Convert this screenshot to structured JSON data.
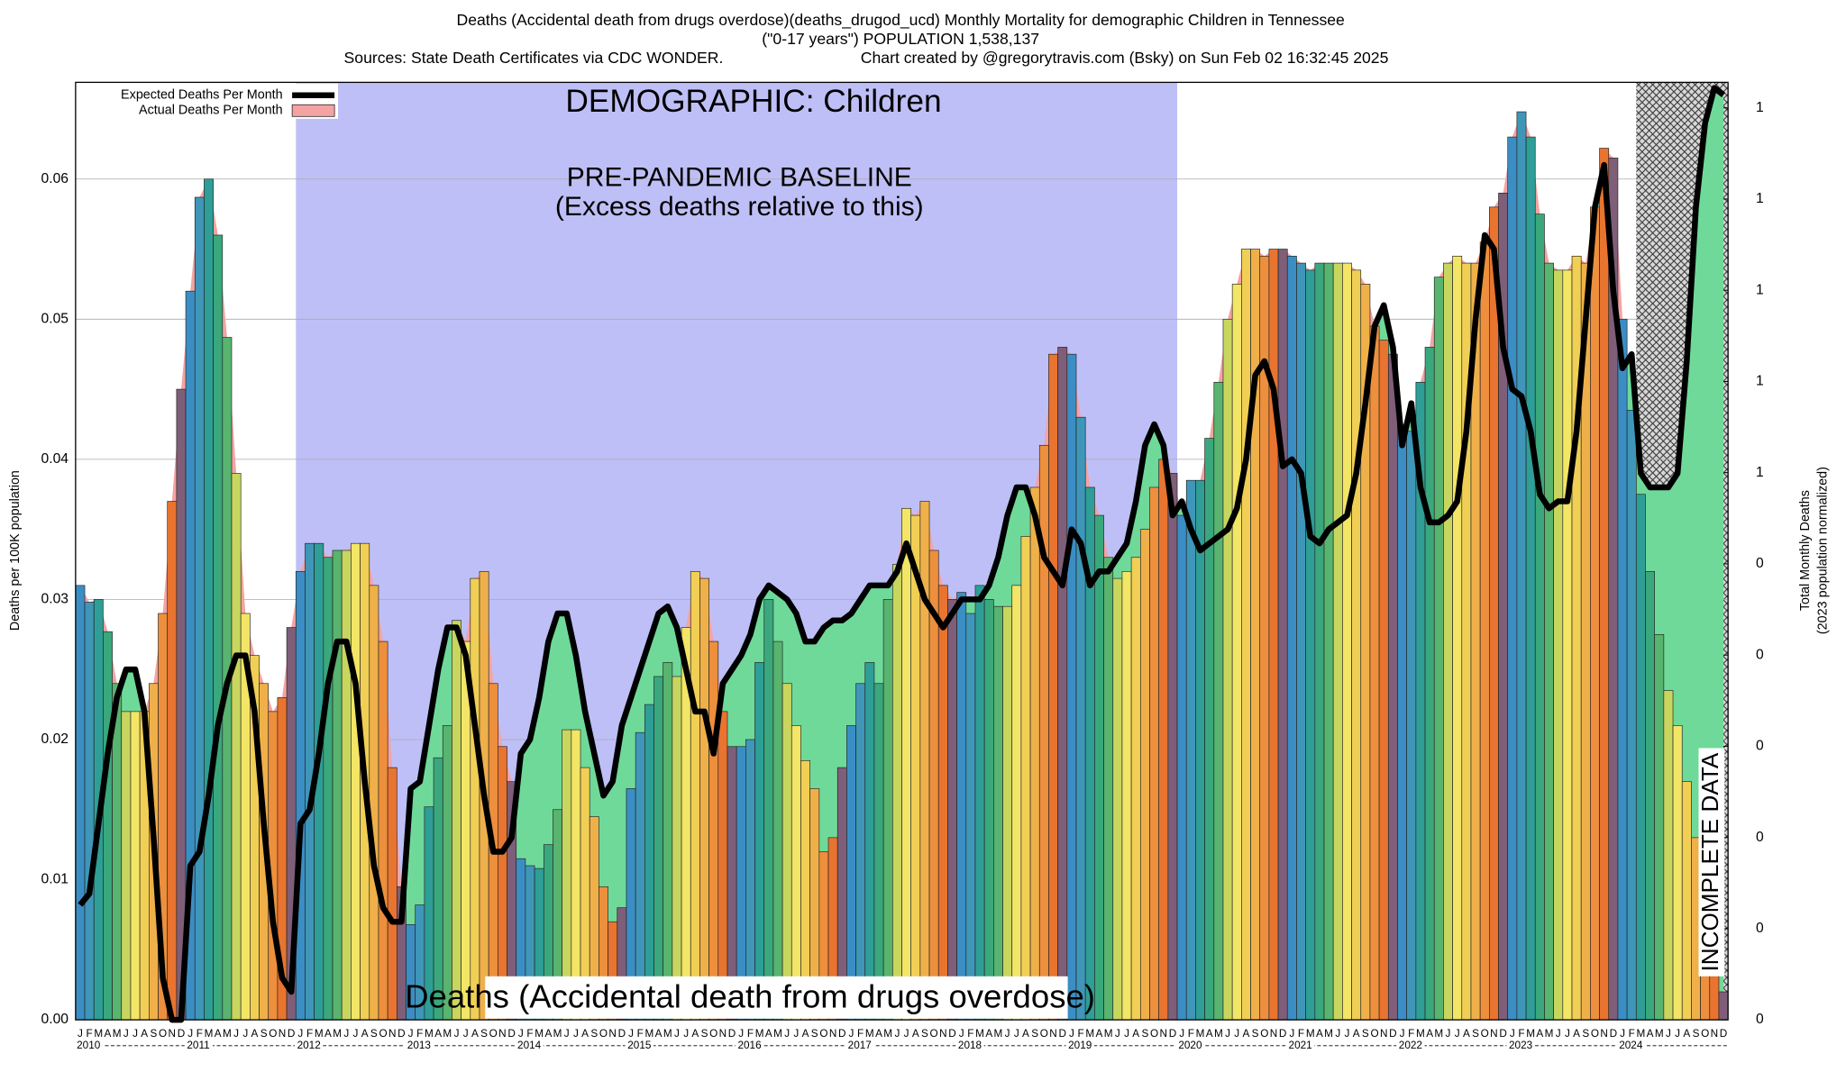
{
  "chart_data": {
    "type": "bar",
    "title": "Deaths (Accidental death from drugs overdose)(deaths_drugod_ucd) Monthly Mortality for demographic Children in Tennessee",
    "subtitle": "(\"0-17 years\") POPULATION 1,538,137",
    "sources": "Sources: State Death Certificates via CDC WONDER.",
    "credit": "Chart created by @gregorytravis.com (Bsky) on Sun Feb 02 16:32:45 2025",
    "ylabel": "Deaths per 100K population",
    "y2label": [
      "Total Monthly Deaths",
      "(2023 population normalized)"
    ],
    "annotations": {
      "demographic": "DEMOGRAPHIC: Children",
      "baseline": "PRE-PANDEMIC BASELINE",
      "baseline_note": "(Excess deaths relative to this)",
      "cause": "Deaths (Accidental death from drugs overdose)",
      "incomplete": "INCOMPLETE DATA"
    },
    "categories": [
      "J",
      "F",
      "M",
      "A",
      "M",
      "J",
      "J",
      "A",
      "S",
      "O",
      "N",
      "D",
      "J",
      "F",
      "M",
      "A",
      "M",
      "J",
      "J",
      "A",
      "S",
      "O",
      "N",
      "D",
      "J",
      "F",
      "M",
      "A",
      "M",
      "J",
      "J",
      "A",
      "S",
      "O",
      "N",
      "D",
      "J",
      "F",
      "M",
      "A",
      "M",
      "J",
      "J",
      "A",
      "S",
      "O",
      "N",
      "D",
      "J",
      "F",
      "M",
      "A",
      "M",
      "J",
      "J",
      "A",
      "S",
      "O",
      "N",
      "D",
      "J",
      "F",
      "M",
      "A",
      "M",
      "J",
      "J",
      "A",
      "S",
      "O",
      "N",
      "D",
      "J",
      "F",
      "M",
      "A",
      "M",
      "J",
      "J",
      "A",
      "S",
      "O",
      "N",
      "D",
      "J",
      "F",
      "M",
      "A",
      "M",
      "J",
      "J",
      "A",
      "S",
      "O",
      "N",
      "D",
      "J",
      "F",
      "M",
      "A",
      "M",
      "J",
      "J",
      "A",
      "S",
      "O",
      "N",
      "D",
      "J",
      "F",
      "M",
      "A",
      "M",
      "J",
      "J",
      "A",
      "S",
      "O",
      "N",
      "D",
      "J",
      "F",
      "M",
      "A",
      "M",
      "J",
      "J",
      "A",
      "S",
      "O",
      "N",
      "D",
      "J",
      "F",
      "M",
      "A",
      "M",
      "J",
      "J",
      "A",
      "S",
      "O",
      "N",
      "D",
      "J",
      "F",
      "M",
      "A",
      "M",
      "J",
      "J",
      "A",
      "S",
      "O",
      "N",
      "D",
      "J",
      "F",
      "M",
      "A",
      "M",
      "J",
      "J",
      "A",
      "S",
      "O",
      "N",
      "D",
      "J",
      "F",
      "M",
      "A",
      "M",
      "J",
      "J",
      "A",
      "S",
      "O",
      "N",
      "D"
    ],
    "years": [
      "2010",
      "2011",
      "2012",
      "2013",
      "2014",
      "2015",
      "2016",
      "2017",
      "2018",
      "2019",
      "2020",
      "2021",
      "2022",
      "2023",
      "2024"
    ],
    "month_colors": [
      "#3b8ec4",
      "#3f96b8",
      "#2e9e96",
      "#3aa87c",
      "#58b46e",
      "#c9d65e",
      "#f3e566",
      "#f1cf55",
      "#efb04a",
      "#ed8f3c",
      "#e8742f",
      "#7e5e78"
    ],
    "series": [
      {
        "name": "Expected Deaths Per Month",
        "color": "#000000",
        "fill": "#6fd99a",
        "values": [
          0.0082,
          0.009,
          0.014,
          0.019,
          0.023,
          0.025,
          0.025,
          0.022,
          0.013,
          0.003,
          0,
          0,
          0.011,
          0.012,
          0.016,
          0.021,
          0.024,
          0.026,
          0.026,
          0.022,
          0.014,
          0.007,
          0.003,
          0.002,
          0.014,
          0.015,
          0.019,
          0.024,
          0.027,
          0.027,
          0.024,
          0.017,
          0.011,
          0.008,
          0.007,
          0.007,
          0.0165,
          0.017,
          0.021,
          0.025,
          0.028,
          0.028,
          0.026,
          0.021,
          0.016,
          0.012,
          0.012,
          0.013,
          0.019,
          0.02,
          0.023,
          0.027,
          0.029,
          0.029,
          0.026,
          0.022,
          0.019,
          0.016,
          0.017,
          0.021,
          0.023,
          0.025,
          0.027,
          0.029,
          0.0295,
          0.028,
          0.025,
          0.022,
          0.022,
          0.019,
          0.024,
          0.025,
          0.026,
          0.0275,
          0.03,
          0.031,
          0.0305,
          0.03,
          0.029,
          0.027,
          0.027,
          0.028,
          0.0285,
          0.0285,
          0.029,
          0.03,
          0.031,
          0.031,
          0.031,
          0.032,
          0.034,
          0.032,
          0.03,
          0.029,
          0.028,
          0.029,
          0.03,
          0.03,
          0.03,
          0.031,
          0.033,
          0.036,
          0.038,
          0.038,
          0.036,
          0.033,
          0.032,
          0.031,
          0.035,
          0.034,
          0.031,
          0.032,
          0.032,
          0.033,
          0.034,
          0.037,
          0.041,
          0.0425,
          0.041,
          0.036,
          0.037,
          0.035,
          0.0335,
          0.034,
          0.0345,
          0.035,
          0.0365,
          0.04,
          0.046,
          0.047,
          0.045,
          0.0395,
          0.04,
          0.039,
          0.0345,
          0.034,
          0.035,
          0.0355,
          0.036,
          0.039,
          0.044,
          0.0495,
          0.051,
          0.048,
          0.041,
          0.044,
          0.038,
          0.0355,
          0.0355,
          0.036,
          0.037,
          0.042,
          0.05,
          0.056,
          0.055,
          0.048,
          0.045,
          0.0445,
          0.042,
          0.0375,
          0.0365,
          0.037,
          0.037,
          0.042,
          0.05,
          0.058,
          0.061,
          0.052,
          0.0465,
          0.0475,
          0.039,
          0.038,
          0.038,
          0.038,
          0.039,
          0.047,
          0.058,
          0.064,
          0.0665,
          0.066
        ]
      },
      {
        "name": "Actual Deaths Per Month",
        "color": "#f4a3a3",
        "values": [
          0.031,
          0.0298,
          0.03,
          0.0277,
          0.024,
          0.022,
          0.022,
          0.022,
          0.024,
          0.029,
          0.037,
          0.045,
          0.052,
          0.0587,
          0.06,
          0.056,
          0.0487,
          0.039,
          0.029,
          0.026,
          0.024,
          0.022,
          0.023,
          0.028,
          0.032,
          0.034,
          0.034,
          0.033,
          0.0335,
          0.0335,
          0.034,
          0.034,
          0.031,
          0.027,
          0.018,
          0.0095,
          0.0068,
          0.0082,
          0.0152,
          0.0187,
          0.021,
          0.0285,
          0.027,
          0.0315,
          0.032,
          0.024,
          0.0195,
          0.017,
          0.0115,
          0.011,
          0.0108,
          0.0125,
          0.015,
          0.0207,
          0.0207,
          0.018,
          0.0145,
          0.0095,
          0.007,
          0.008,
          0.0165,
          0.0205,
          0.0225,
          0.0245,
          0.0255,
          0.0245,
          0.028,
          0.032,
          0.0315,
          0.027,
          0.022,
          0.0195,
          0.0195,
          0.02,
          0.0255,
          0.03,
          0.027,
          0.024,
          0.021,
          0.0185,
          0.0165,
          0.012,
          0.013,
          0.018,
          0.021,
          0.024,
          0.0255,
          0.024,
          0.03,
          0.0325,
          0.0365,
          0.036,
          0.037,
          0.0335,
          0.031,
          0.03,
          0.0305,
          0.029,
          0.031,
          0.03,
          0.0295,
          0.0295,
          0.031,
          0.0345,
          0.038,
          0.041,
          0.0475,
          0.048,
          0.0475,
          0.043,
          0.038,
          0.036,
          0.033,
          0.0315,
          0.032,
          0.033,
          0.035,
          0.038,
          0.04,
          0.039,
          0.036,
          0.0385,
          0.0385,
          0.0415,
          0.0455,
          0.05,
          0.0525,
          0.055,
          0.055,
          0.0545,
          0.055,
          0.055,
          0.0545,
          0.054,
          0.0535,
          0.054,
          0.054,
          0.054,
          0.054,
          0.0535,
          0.0525,
          0.0495,
          0.0485,
          0.0475,
          0.0425,
          0.042,
          0.0455,
          0.048,
          0.053,
          0.054,
          0.0545,
          0.054,
          0.054,
          0.0555,
          0.058,
          0.059,
          0.063,
          0.0648,
          0.063,
          0.0575,
          0.054,
          0.0535,
          0.0535,
          0.0545,
          0.054,
          0.058,
          0.0622,
          0.0615,
          0.05,
          0.0435,
          0.0375,
          0.032,
          0.0275,
          0.0235,
          0.021,
          0.017,
          0.013,
          0.009,
          0.005,
          0.002
        ]
      }
    ],
    "ylim": [
      0,
      0.0669
    ],
    "yticks": [
      {
        "value": 0,
        "label": "0.00"
      },
      0.01,
      0.02,
      0.03,
      0.04,
      0.05,
      0.06
    ],
    "y2lim": [
      0,
      1.028
    ],
    "y2ticks": [
      {
        "value": 0,
        "label": "0"
      },
      {
        "value": 0.1,
        "label": "0"
      },
      {
        "value": 0.2,
        "label": "0"
      },
      {
        "value": 0.3,
        "label": "0"
      },
      {
        "value": 0.4,
        "label": "0"
      },
      {
        "value": 0.5,
        "label": "0"
      },
      {
        "value": 0.6,
        "label": "1"
      },
      {
        "value": 0.7,
        "label": "1"
      },
      {
        "value": 0.8,
        "label": "1"
      },
      {
        "value": 0.9,
        "label": "1"
      },
      {
        "value": 1.0,
        "label": "1"
      }
    ],
    "grid": true,
    "legend": "top-left"
  }
}
